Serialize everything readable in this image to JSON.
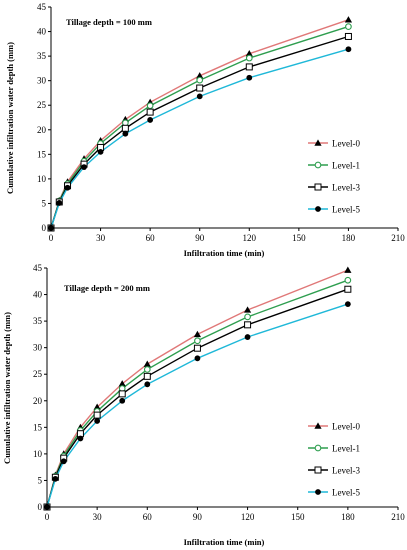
{
  "chart_data": [
    {
      "type": "line",
      "annotation": "Tillage depth = 100 mm",
      "xlabel": "Infiltration time (min)",
      "ylabel": "Cumulative infiltration water depth (mm)",
      "xlim": [
        0,
        210
      ],
      "ylim": [
        0,
        45
      ],
      "xticks": [
        0,
        30,
        60,
        90,
        120,
        150,
        180,
        210
      ],
      "yticks": [
        0,
        5,
        10,
        15,
        20,
        25,
        30,
        35,
        40,
        45
      ],
      "x": [
        0,
        5,
        10,
        20,
        30,
        45,
        60,
        90,
        120,
        180
      ],
      "legend_position": "right",
      "series": [
        {
          "name": "Level-0",
          "color": "#e07878",
          "marker": "filled-triangle",
          "values": [
            0,
            5.6,
            9.4,
            14.1,
            17.8,
            22.1,
            25.6,
            31.0,
            35.5,
            42.4
          ]
        },
        {
          "name": "Level-1",
          "color": "#2e9e4f",
          "marker": "open-circle",
          "values": [
            0,
            5.5,
            9.0,
            13.6,
            17.2,
            21.4,
            24.9,
            30.1,
            34.6,
            41.0
          ]
        },
        {
          "name": "Level-3",
          "color": "#000000",
          "marker": "open-square",
          "values": [
            0,
            5.3,
            8.6,
            13.0,
            16.4,
            20.3,
            23.6,
            28.5,
            32.8,
            39.0
          ]
        },
        {
          "name": "Level-5",
          "color": "#1fb8d8",
          "marker": "filled-circle",
          "values": [
            0,
            5.1,
            8.2,
            12.4,
            15.5,
            19.2,
            22.0,
            26.8,
            30.6,
            36.4
          ]
        }
      ]
    },
    {
      "type": "line",
      "annotation": "Tillage depth = 200 mm",
      "xlabel": "Infiltration time (min)",
      "ylabel": "Cumulative infiltration water depth (mm)",
      "xlim": [
        0,
        210
      ],
      "ylim": [
        0,
        45
      ],
      "xticks": [
        0,
        30,
        60,
        90,
        120,
        150,
        180,
        210
      ],
      "yticks": [
        0,
        5,
        10,
        15,
        20,
        25,
        30,
        35,
        40,
        45
      ],
      "x": [
        0,
        5,
        10,
        20,
        30,
        45,
        60,
        90,
        120,
        180
      ],
      "legend_position": "right",
      "series": [
        {
          "name": "Level-0",
          "color": "#e07878",
          "marker": "filled-triangle",
          "values": [
            0,
            6.0,
            10.0,
            15.0,
            18.8,
            23.2,
            26.9,
            32.5,
            37.1,
            44.6
          ]
        },
        {
          "name": "Level-1",
          "color": "#2e9e4f",
          "marker": "open-circle",
          "values": [
            0,
            5.8,
            9.6,
            14.4,
            18.0,
            22.3,
            25.9,
            31.3,
            35.8,
            42.7
          ]
        },
        {
          "name": "Level-3",
          "color": "#000000",
          "marker": "open-square",
          "values": [
            0,
            5.6,
            9.2,
            13.8,
            17.3,
            21.3,
            24.6,
            29.9,
            34.3,
            41.0
          ]
        },
        {
          "name": "Level-5",
          "color": "#1fb8d8",
          "marker": "filled-circle",
          "values": [
            0,
            5.3,
            8.6,
            12.9,
            16.2,
            20.0,
            23.1,
            28.0,
            32.0,
            38.2
          ]
        }
      ]
    }
  ]
}
